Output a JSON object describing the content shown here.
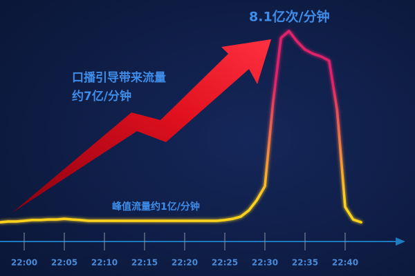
{
  "chart_data": {
    "type": "line",
    "annotations": [
      "8.1亿次/分钟",
      "口播引导带来流量",
      "约7亿/分钟",
      "峰值流量约1亿/分钟"
    ],
    "x": [
      "21:57",
      "21:58",
      "21:59",
      "22:00",
      "22:01",
      "22:02",
      "22:03",
      "22:04",
      "22:05",
      "22:06",
      "22:07",
      "22:08",
      "22:09",
      "22:10",
      "22:11",
      "22:12",
      "22:13",
      "22:14",
      "22:15",
      "22:16",
      "22:17",
      "22:18",
      "22:19",
      "22:20",
      "22:21",
      "22:22",
      "22:23",
      "22:24",
      "22:25",
      "22:26",
      "22:27",
      "22:28",
      "22:29",
      "22:30",
      "22:31",
      "22:32",
      "22:33",
      "22:34",
      "22:35",
      "22:36",
      "22:37",
      "22:38",
      "22:39",
      "22:40",
      "22:41",
      "22:42"
    ],
    "values": [
      0.36,
      0.39,
      0.39,
      0.42,
      0.45,
      0.45,
      0.47,
      0.47,
      0.5,
      0.47,
      0.45,
      0.42,
      0.42,
      0.42,
      0.42,
      0.42,
      0.42,
      0.42,
      0.42,
      0.42,
      0.42,
      0.42,
      0.42,
      0.42,
      0.42,
      0.42,
      0.42,
      0.42,
      0.45,
      0.5,
      0.59,
      0.84,
      1.26,
      1.82,
      5.17,
      7.82,
      8.1,
      7.68,
      7.35,
      7.18,
      7.07,
      6.9,
      4.89,
      0.98,
      0.47,
      0.36
    ],
    "xticks": [
      "22:00",
      "22:05",
      "22:10",
      "22:15",
      "22:20",
      "22:25",
      "22:30",
      "22:35",
      "22:40"
    ],
    "color_low": "#ffd21e",
    "color_high": "#e0206a"
  }
}
